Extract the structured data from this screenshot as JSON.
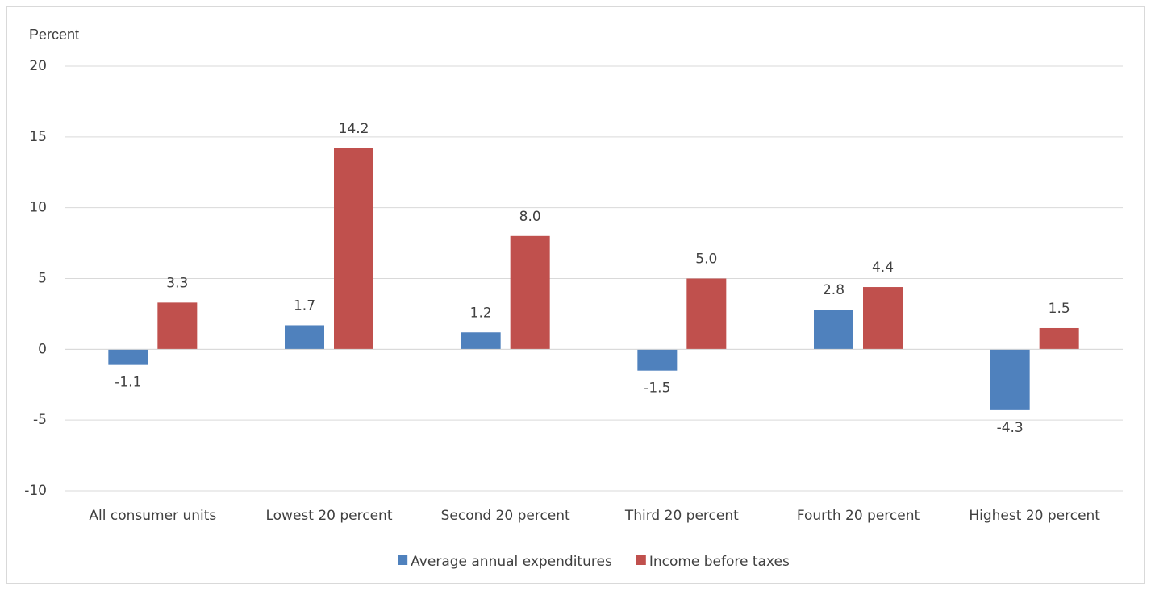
{
  "chart_data": {
    "type": "bar",
    "y_label": "Percent",
    "categories": [
      "All consumer units",
      "Lowest 20 percent",
      "Second 20 percent",
      "Third 20 percent",
      "Fourth 20 percent",
      "Highest 20 percent"
    ],
    "series": [
      {
        "name": "Average annual expenditures",
        "color": "#4f81bd",
        "values": [
          -1.1,
          1.7,
          1.2,
          -1.5,
          2.8,
          -4.3
        ],
        "value_labels": [
          "-1.1",
          "1.7",
          "1.2",
          "-1.5",
          "2.8",
          "-4.3"
        ]
      },
      {
        "name": "Income before taxes",
        "color": "#c0504d",
        "values": [
          3.3,
          14.2,
          8.0,
          5.0,
          4.4,
          1.5
        ],
        "value_labels": [
          "3.3",
          "14.2",
          "8.0",
          "5.0",
          "4.4",
          "1.5"
        ]
      }
    ],
    "ylim": [
      -10,
      20
    ],
    "yticks": [
      -10,
      -5,
      0,
      5,
      10,
      15,
      20
    ],
    "grid": true,
    "legend": "bottom"
  }
}
